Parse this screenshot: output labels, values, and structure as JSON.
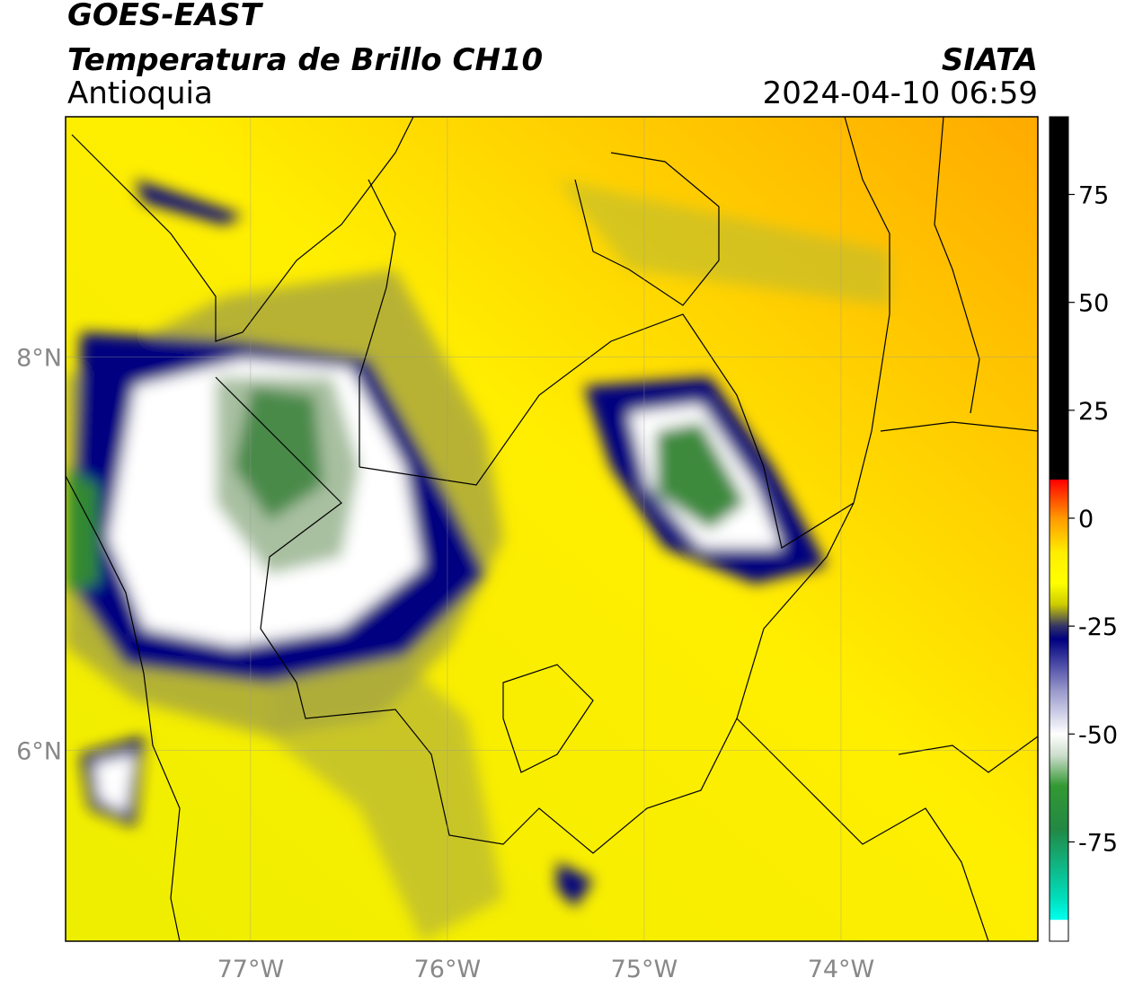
{
  "chart_data": {
    "type": "map",
    "title": "GOES-EAST",
    "subtitle": "Temperatura de Brillo CH10",
    "region": "Antioquia",
    "source": "SIATA",
    "datetime": "2024-04-10 06:59",
    "xlim": [
      -77.94,
      -73.0
    ],
    "ylim": [
      5.03,
      9.22
    ],
    "xticks": [
      {
        "value": -77,
        "label": "77°W"
      },
      {
        "value": -76,
        "label": "76°W"
      },
      {
        "value": -75,
        "label": "75°W"
      },
      {
        "value": -74,
        "label": "74°W"
      }
    ],
    "yticks": [
      {
        "value": 6,
        "label": "6°N"
      },
      {
        "value": 8,
        "label": "8°N"
      }
    ],
    "grid": true,
    "colorbar": {
      "lim": [
        -98,
        93
      ],
      "ticks": [
        75,
        50,
        25,
        0,
        -25,
        -50,
        -75
      ],
      "stops": [
        {
          "value": 93,
          "color": "#000000"
        },
        {
          "value": 9,
          "color": "#000000"
        },
        {
          "value": 8.9,
          "color": "#ff0000"
        },
        {
          "value": 0,
          "color": "#ff9900"
        },
        {
          "value": -8,
          "color": "#ffee00"
        },
        {
          "value": -15,
          "color": "#ffff00"
        },
        {
          "value": -20,
          "color": "#cccc00"
        },
        {
          "value": -25,
          "color": "#333366"
        },
        {
          "value": -28,
          "color": "#000080"
        },
        {
          "value": -40,
          "color": "#9999cc"
        },
        {
          "value": -50,
          "color": "#ffffff"
        },
        {
          "value": -55,
          "color": "#ccddcc"
        },
        {
          "value": -62,
          "color": "#339933"
        },
        {
          "value": -72,
          "color": "#228844"
        },
        {
          "value": -88,
          "color": "#00ddbb"
        },
        {
          "value": -93,
          "color": "#00ffee"
        },
        {
          "value": -93.1,
          "color": "#ffffff"
        },
        {
          "value": -98,
          "color": "#ffffff"
        }
      ]
    }
  }
}
